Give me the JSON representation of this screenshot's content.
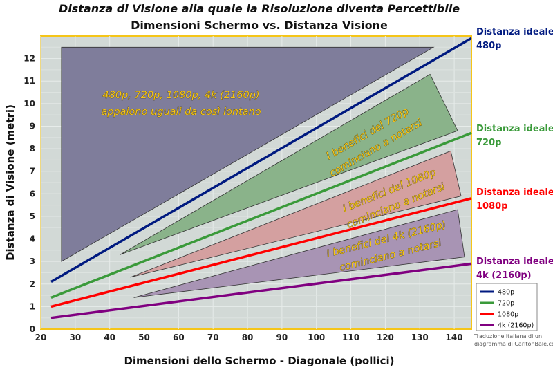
{
  "chart_data": {
    "type": "line",
    "title": "Distanza di Visione alla quale la Risoluzione diventa Percettibile",
    "subtitle": "Dimensioni Schermo vs. Distanza Visione",
    "xlabel": "Dimensioni dello Schermo - Diagonale (pollici)",
    "ylabel": "Distanza di Visione (metri)",
    "xlim": [
      20,
      145
    ],
    "ylim": [
      0,
      13
    ],
    "xticks": [
      20,
      30,
      40,
      50,
      60,
      70,
      80,
      90,
      100,
      110,
      120,
      130,
      140
    ],
    "yticks": [
      0,
      1,
      2,
      3,
      4,
      5,
      6,
      7,
      8,
      9,
      10,
      11,
      12
    ],
    "grid": true,
    "legend_position": "bottom-right",
    "series": [
      {
        "name": "480p",
        "color": "#001a80",
        "x": [
          23,
          145
        ],
        "y": [
          2.1,
          12.9
        ],
        "end_label": [
          "Distanza ideale",
          "480p"
        ]
      },
      {
        "name": "720p",
        "color": "#3a9a3a",
        "x": [
          23,
          145
        ],
        "y": [
          1.4,
          8.7
        ],
        "end_label": [
          "Distanza ideale",
          "720p"
        ]
      },
      {
        "name": "1080p",
        "color": "#ff0000",
        "x": [
          23,
          145
        ],
        "y": [
          1.0,
          5.8
        ],
        "end_label": [
          "Distanza ideale",
          "1080p"
        ]
      },
      {
        "name": "4k (2160p)",
        "color": "#800080",
        "x": [
          23,
          145
        ],
        "y": [
          0.5,
          2.9
        ],
        "end_label": [
          "Distanza ideale",
          "4k (2160p)"
        ]
      }
    ],
    "regions": [
      {
        "color": "#7f7d9b",
        "points": [
          [
            26,
            3.0
          ],
          [
            26,
            12.5
          ],
          [
            134,
            12.5
          ]
        ],
        "label": [
          "480p, 720p, 1080p, 4k (2160p)",
          "appaiono uguali da così lontano"
        ]
      },
      {
        "color": "#8ab38a",
        "points": [
          [
            43,
            3.3
          ],
          [
            133,
            11.3
          ],
          [
            141,
            8.8
          ]
        ],
        "label": [
          "I benefici del 720p",
          "cominciano a notarsi"
        ]
      },
      {
        "color": "#d4a0a0",
        "points": [
          [
            46,
            2.3
          ],
          [
            139,
            7.9
          ],
          [
            142,
            5.9
          ]
        ],
        "label": [
          "I benefici del 1080p",
          "cominciano a notarsi"
        ]
      },
      {
        "color": "#a894b4",
        "points": [
          [
            47,
            1.4
          ],
          [
            141,
            5.3
          ],
          [
            143,
            3.2
          ]
        ],
        "label": [
          "I benefici del 4k (2160p)",
          "cominciano a notarsi"
        ]
      }
    ],
    "credit": [
      "Traduzione italiana di un",
      "diagramma di CarltonBale.com"
    ]
  }
}
